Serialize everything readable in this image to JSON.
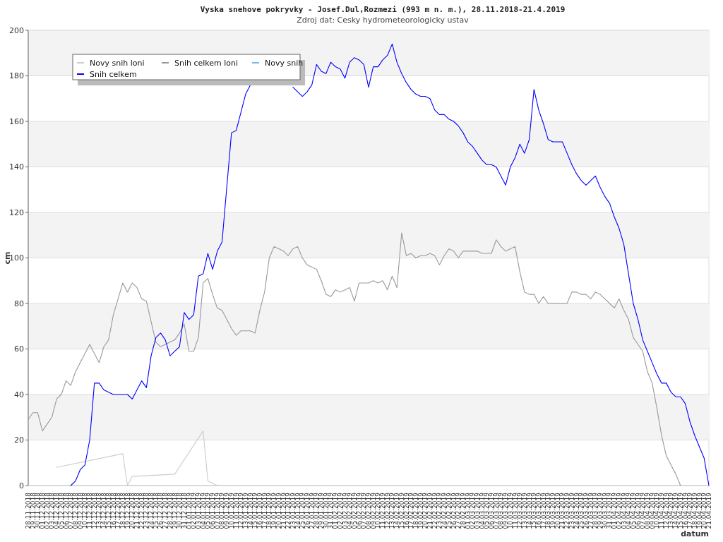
{
  "chart_data": {
    "type": "line",
    "title": "Vyska snehove pokryvky - Josef.Dul,Rozmezi (993 m n. m.), 28.11.2018-21.4.2019",
    "subtitle": "Zdroj dat: Cesky hydrometeorologicky ustav",
    "xlabel": "datum",
    "ylabel": "cm",
    "categories": [
      "28.11.2018",
      "29.11.2018",
      "30.11.2018",
      "01.12.2018",
      "02.12.2018",
      "03.12.2018",
      "04.12.2018",
      "05.12.2018",
      "06.12.2018",
      "07.12.2018",
      "08.12.2018",
      "09.12.2018",
      "10.12.2018",
      "11.12.2018",
      "12.12.2018",
      "13.12.2018",
      "14.12.2018",
      "15.12.2018",
      "16.12.2018",
      "17.12.2018",
      "18.12.2018",
      "19.12.2018",
      "20.12.2018",
      "21.12.2018",
      "22.12.2018",
      "23.12.2018",
      "24.12.2018",
      "25.12.2018",
      "26.12.2018",
      "27.12.2018",
      "28.12.2018",
      "29.12.2018",
      "30.12.2018",
      "31.12.2018",
      "01.01.2019",
      "02.01.2019",
      "03.01.2019",
      "04.01.2019",
      "05.01.2019",
      "06.01.2019",
      "07.01.2019",
      "08.01.2019",
      "09.01.2019",
      "10.01.2019",
      "11.01.2019",
      "12.01.2019",
      "13.01.2019",
      "14.01.2019",
      "15.01.2019",
      "16.01.2019",
      "17.01.2019",
      "18.01.2019",
      "19.01.2019",
      "20.01.2019",
      "21.01.2019",
      "22.01.2019",
      "23.01.2019",
      "24.01.2019",
      "25.01.2019",
      "26.01.2019",
      "27.01.2019",
      "28.01.2019",
      "29.01.2019",
      "30.01.2019",
      "31.01.2019",
      "01.02.2019",
      "02.02.2019",
      "03.02.2019",
      "04.02.2019",
      "05.02.2019",
      "06.02.2019",
      "07.02.2019",
      "08.02.2019",
      "09.02.2019",
      "10.02.2019",
      "11.02.2019",
      "12.02.2019",
      "13.02.2019",
      "14.02.2019",
      "15.02.2019",
      "16.02.2019",
      "17.02.2019",
      "18.02.2019",
      "19.02.2019",
      "20.02.2019",
      "21.02.2019",
      "22.02.2019",
      "23.02.2019",
      "24.02.2019",
      "25.02.2019",
      "26.02.2019",
      "27.02.2019",
      "28.02.2019",
      "01.03.2019",
      "02.03.2019",
      "03.03.2019",
      "04.03.2019",
      "05.03.2019",
      "06.03.2019",
      "07.03.2019",
      "08.03.2019",
      "09.03.2019",
      "10.03.2019",
      "11.03.2019",
      "12.03.2019",
      "13.03.2019",
      "14.03.2019",
      "15.03.2019",
      "16.03.2019",
      "17.03.2019",
      "18.03.2019",
      "19.03.2019",
      "20.03.2019",
      "21.03.2019",
      "22.03.2019",
      "23.03.2019",
      "24.03.2019",
      "25.03.2019",
      "26.03.2019",
      "27.03.2019",
      "28.03.2019",
      "29.03.2019",
      "30.03.2019",
      "31.03.2019",
      "01.04.2019",
      "02.04.2019",
      "03.04.2019",
      "04.04.2019",
      "05.04.2019",
      "06.04.2019",
      "07.04.2019",
      "08.04.2019",
      "09.04.2019",
      "10.04.2019",
      "11.04.2019",
      "12.04.2019",
      "13.04.2019",
      "14.04.2019",
      "15.04.2019",
      "16.04.2019",
      "17.04.2019",
      "18.04.2019",
      "19.04.2019",
      "20.04.2019",
      "21.04.2019"
    ],
    "series": [
      {
        "name": "Novy snih loni",
        "color": "#cccccc",
        "x": [
          "04.12.2018",
          "18.12.2018",
          "19.12.2018",
          "20.12.2018",
          "29.12.2018",
          "04.01.2019",
          "05.01.2019",
          "07.01.2019"
        ],
        "values": [
          8,
          14,
          0,
          4,
          5,
          24,
          2,
          0
        ]
      },
      {
        "name": "Snih celkem loni",
        "color": "#999999",
        "values": [
          29,
          32,
          32,
          24,
          27,
          30,
          38,
          40,
          46,
          44,
          50,
          54,
          58,
          62,
          58,
          54,
          61,
          64,
          75,
          82,
          89,
          85,
          89,
          87,
          82,
          81,
          72,
          63,
          61,
          62,
          63,
          64,
          67,
          71,
          59,
          59,
          65,
          89,
          91,
          84,
          78,
          77,
          73,
          69,
          66,
          68,
          68,
          68,
          67,
          77,
          85,
          100,
          105,
          104,
          103,
          101,
          104,
          105,
          100,
          97,
          96,
          95,
          90,
          84,
          83,
          86,
          85,
          86,
          87,
          81,
          89,
          89,
          89,
          90,
          89,
          90,
          86,
          92,
          87,
          111,
          101,
          102,
          100,
          101,
          101,
          102,
          101,
          97,
          101,
          104,
          103,
          100,
          103,
          103,
          103,
          103,
          102,
          102,
          102,
          108,
          105,
          103,
          104,
          105,
          94,
          85,
          84,
          84,
          80,
          83,
          80,
          80,
          80,
          80,
          80,
          85,
          85,
          84,
          84,
          82,
          85,
          84,
          82,
          80,
          78,
          82,
          77,
          73,
          65,
          62,
          59,
          50,
          45,
          34,
          22,
          13,
          9,
          5,
          0,
          null,
          null,
          null,
          null,
          null,
          null
        ]
      },
      {
        "name": "Novy snih",
        "color": "#77bbee",
        "values": [
          null,
          null,
          null,
          null,
          null,
          null,
          null,
          null,
          null,
          null,
          null,
          null,
          null,
          null,
          null,
          null,
          null,
          null,
          null,
          null,
          null,
          null,
          null,
          null,
          null,
          null,
          null,
          null,
          null,
          null,
          null,
          null,
          null,
          null,
          null,
          null,
          null,
          null,
          null,
          null,
          null,
          null,
          null,
          null,
          null,
          null,
          null,
          null,
          null,
          null,
          null,
          null,
          null,
          null,
          null,
          null,
          null,
          null,
          null,
          null,
          null,
          null,
          null,
          null,
          null,
          null,
          null,
          null,
          null,
          null,
          null,
          null,
          null,
          null,
          null,
          null,
          null,
          null,
          null,
          null,
          null,
          null,
          null,
          null,
          null,
          null,
          null,
          null,
          null,
          null,
          null,
          null,
          null,
          null,
          null,
          null,
          null,
          null,
          null,
          null,
          null,
          null,
          null,
          null,
          null,
          null,
          null,
          null,
          null,
          null,
          null,
          null,
          null,
          null,
          null,
          null,
          null,
          null,
          null,
          null,
          null,
          null,
          null,
          null,
          null,
          null,
          null,
          null,
          null,
          null,
          null,
          null,
          null,
          null,
          null,
          null,
          null,
          null,
          null,
          null,
          null,
          null,
          null,
          null,
          null
        ]
      },
      {
        "name": "Snih celkem",
        "color": "#0000ff",
        "values": [
          null,
          null,
          null,
          null,
          null,
          null,
          null,
          null,
          null,
          0,
          2,
          7,
          9,
          20,
          45,
          45,
          42,
          41,
          40,
          40,
          40,
          40,
          38,
          42,
          46,
          43,
          57,
          65,
          67,
          64,
          57,
          59,
          61,
          76,
          73,
          75,
          92,
          93,
          102,
          95,
          103,
          107,
          131,
          155,
          156,
          164,
          172,
          176,
          null,
          null,
          null,
          null,
          null,
          null,
          null,
          null,
          175,
          173,
          171,
          173,
          176,
          185,
          182,
          181,
          186,
          184,
          183,
          179,
          186,
          188,
          187,
          185,
          175,
          184,
          184,
          187,
          189,
          194,
          186,
          181,
          177,
          174,
          172,
          171,
          171,
          170,
          165,
          163,
          163,
          161,
          160,
          158,
          155,
          151,
          149,
          146,
          143,
          141,
          141,
          140,
          136,
          132,
          140,
          144,
          150,
          146,
          152,
          174,
          165,
          159,
          152,
          151,
          151,
          151,
          146,
          141,
          137,
          134,
          132,
          134,
          136,
          131,
          127,
          124,
          118,
          113,
          106,
          93,
          80,
          73,
          64,
          59,
          54,
          49,
          45,
          45,
          41,
          39,
          39,
          36,
          28,
          22,
          17,
          12,
          0
        ]
      }
    ],
    "ylim": [
      0,
      200
    ],
    "yticks": [
      0,
      20,
      40,
      60,
      80,
      100,
      120,
      140,
      160,
      180,
      200
    ],
    "grid": "y",
    "legend": "top left"
  }
}
